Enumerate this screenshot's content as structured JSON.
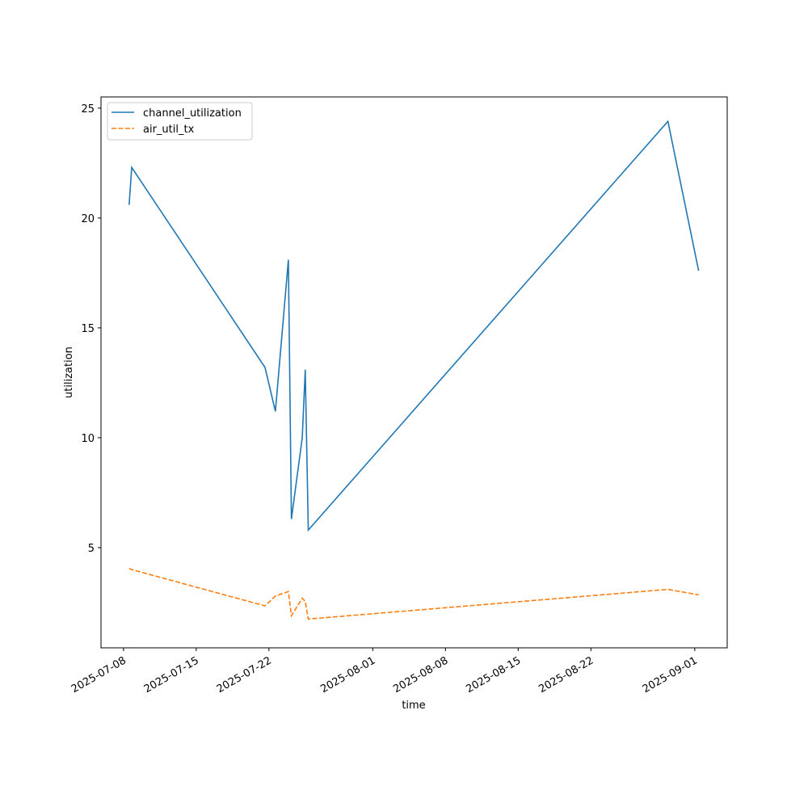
{
  "chart_data": {
    "type": "line",
    "xlabel": "time",
    "ylabel": "utilization",
    "x": [
      "2025-07-08T13:00",
      "2025-07-08T19:00",
      "2025-07-21T15:00",
      "2025-07-22T15:00",
      "2025-07-23T21:00",
      "2025-07-24T04:00",
      "2025-07-25T05:00",
      "2025-07-25T12:00",
      "2025-07-25T19:00",
      "2025-08-29T10:00",
      "2025-09-01T09:00"
    ],
    "series": [
      {
        "name": "channel_utilization",
        "color": "#1f77b4",
        "dash": "solid",
        "values": [
          20.6,
          22.3,
          13.2,
          11.2,
          18.1,
          6.3,
          10.0,
          13.1,
          5.8,
          24.4,
          17.6
        ]
      },
      {
        "name": "air_util_tx",
        "color": "#ff7f0e",
        "dash": "dashed",
        "values": [
          4.05,
          4.0,
          2.35,
          2.8,
          3.0,
          1.9,
          2.7,
          2.55,
          1.75,
          3.1,
          2.85
        ]
      }
    ],
    "xlim": [
      "2025-07-05T20:00",
      "2025-09-04T03:00"
    ],
    "xticks": [
      "2025-07-08",
      "2025-07-15",
      "2025-07-22",
      "2025-08-01",
      "2025-08-08",
      "2025-08-15",
      "2025-08-22",
      "2025-09-01"
    ],
    "ylim": [
      0.44,
      25.51
    ],
    "yticks": [
      5,
      10,
      15,
      20,
      25
    ],
    "grid": false,
    "legend": "upper left"
  }
}
